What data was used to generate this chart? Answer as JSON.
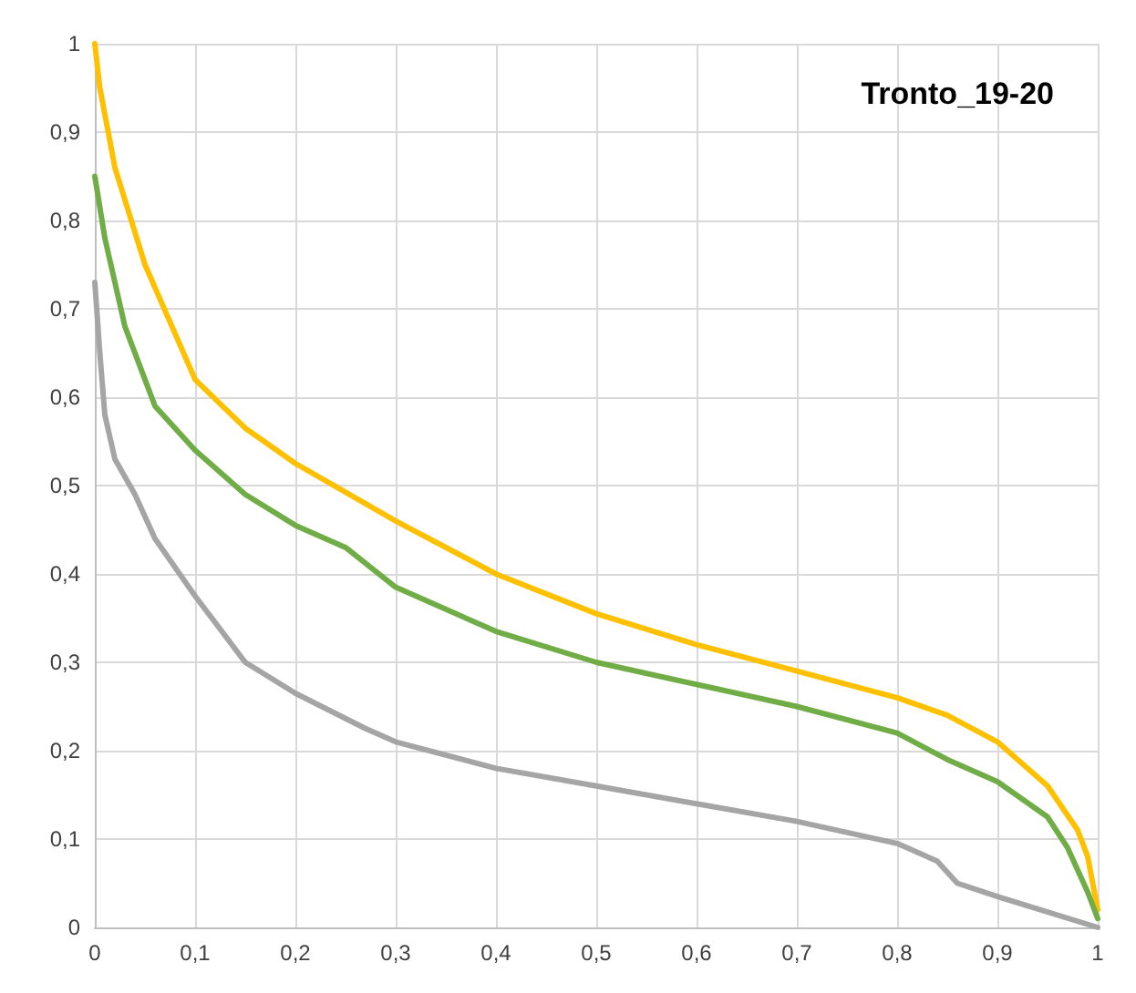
{
  "chart_data": {
    "type": "line",
    "title": "Tronto_19-20",
    "marker": "none",
    "line_style": "solid",
    "grid": true,
    "xlim": [
      0,
      1
    ],
    "ylim": [
      0,
      1
    ],
    "xticks": [
      0,
      {
        "value": 0.1,
        "label": "0,1"
      },
      {
        "value": 0.2,
        "label": "0,2"
      },
      {
        "value": 0.3,
        "label": "0,3"
      },
      {
        "value": 0.4,
        "label": "0,4"
      },
      {
        "value": 0.5,
        "label": "0,5"
      },
      {
        "value": 0.6,
        "label": "0,6"
      },
      {
        "value": 0.7,
        "label": "0,7"
      },
      {
        "value": 0.8,
        "label": "0,8"
      },
      {
        "value": 0.9,
        "label": "0,9"
      },
      1
    ],
    "yticks": [
      0,
      {
        "value": 0.1,
        "label": "0,1"
      },
      {
        "value": 0.2,
        "label": "0,2"
      },
      {
        "value": 0.3,
        "label": "0,3"
      },
      {
        "value": 0.4,
        "label": "0,4"
      },
      {
        "value": 0.5,
        "label": "0,5"
      },
      {
        "value": 0.6,
        "label": "0,6"
      },
      {
        "value": 0.7,
        "label": "0,7"
      },
      {
        "value": 0.8,
        "label": "0,8"
      },
      {
        "value": 0.9,
        "label": "0,9"
      },
      1
    ],
    "series": [
      {
        "color": "#ffc000",
        "x": [
          0,
          0.005,
          0.02,
          0.05,
          0.1,
          0.15,
          0.2,
          0.3,
          0.4,
          0.5,
          0.6,
          0.7,
          0.8,
          0.85,
          0.9,
          0.95,
          0.98,
          0.99,
          1
        ],
        "values": [
          1,
          0.95,
          0.86,
          0.75,
          0.62,
          0.565,
          0.525,
          0.46,
          0.4,
          0.355,
          0.32,
          0.29,
          0.26,
          0.24,
          0.21,
          0.16,
          0.11,
          0.08,
          0.02
        ]
      },
      {
        "color": "#70ad47",
        "x": [
          0,
          0.01,
          0.03,
          0.05,
          0.06,
          0.1,
          0.15,
          0.2,
          0.25,
          0.3,
          0.4,
          0.5,
          0.6,
          0.7,
          0.8,
          0.85,
          0.9,
          0.95,
          0.97,
          0.99,
          1
        ],
        "values": [
          0.85,
          0.78,
          0.68,
          0.62,
          0.59,
          0.54,
          0.49,
          0.455,
          0.43,
          0.385,
          0.335,
          0.3,
          0.275,
          0.25,
          0.22,
          0.19,
          0.165,
          0.125,
          0.09,
          0.04,
          0.01
        ]
      },
      {
        "color": "#a5a5a5",
        "x": [
          0,
          0.005,
          0.01,
          0.02,
          0.04,
          0.06,
          0.1,
          0.15,
          0.2,
          0.27,
          0.3,
          0.4,
          0.5,
          0.6,
          0.7,
          0.8,
          0.84,
          0.86,
          0.9,
          1
        ],
        "values": [
          0.73,
          0.65,
          0.58,
          0.53,
          0.49,
          0.44,
          0.375,
          0.3,
          0.265,
          0.225,
          0.21,
          0.18,
          0.16,
          0.14,
          0.12,
          0.095,
          0.075,
          0.05,
          0.035,
          0
        ]
      }
    ]
  }
}
